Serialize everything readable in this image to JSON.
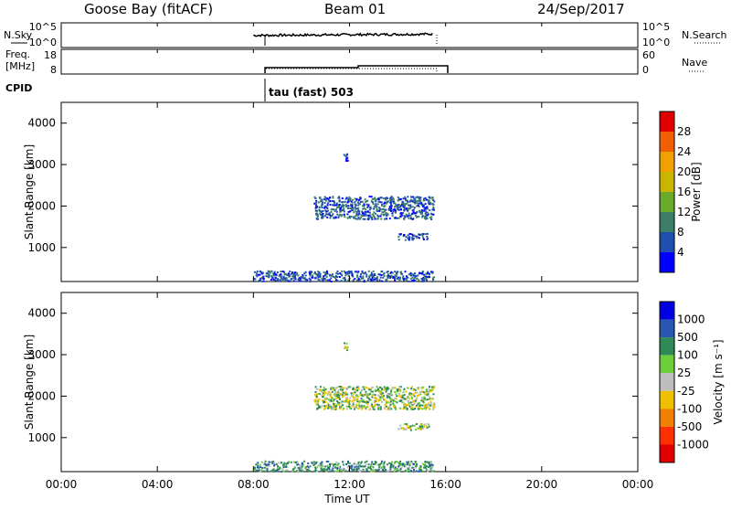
{
  "header": {
    "station": "Goose Bay (fitACF)",
    "beam": "Beam 01",
    "date": "24/Sep/2017"
  },
  "strip1": {
    "left_label": "N.Sky",
    "left_ticks": [
      "10^5",
      "10^0"
    ],
    "right_ticks": [
      "10^5",
      "10^0"
    ],
    "right_label": "N.Search"
  },
  "strip2": {
    "left_label_line1": "Freq.",
    "left_label_line2": "[MHz]",
    "left_ticks": [
      "18",
      "8"
    ],
    "right_ticks": [
      "60",
      "0"
    ],
    "right_label": "Nave",
    "cpid_label": "CPID",
    "cpid_value": "tau (fast) 503"
  },
  "colors": {
    "power_scale": [
      "#0000ff",
      "#1f4fae",
      "#3d7f66",
      "#6aaa2a",
      "#c9b400",
      "#f0a000",
      "#f06000",
      "#e00000"
    ],
    "velocity_scale": [
      "#0000e0",
      "#2a55b0",
      "#2e8b57",
      "#6ccf3a",
      "#bebebe",
      "#f0c000",
      "#f08000",
      "#ff3000",
      "#e00000"
    ]
  },
  "chart_data": [
    {
      "type": "heatmap",
      "name_axis": "Power",
      "ylabel": "Slant Range [km]",
      "xlim_hours": [
        0,
        24
      ],
      "ylim": [
        180,
        4500
      ],
      "yticks": [
        1000,
        2000,
        3000,
        4000
      ],
      "colorbar": {
        "label": "Power [dB]",
        "range": [
          0,
          32
        ],
        "ticks": [
          "4",
          "8",
          "12",
          "16",
          "20",
          "24",
          "28"
        ]
      },
      "data_extent_hours": [
        8.0,
        15.5
      ],
      "regions": [
        {
          "x": [
            8.0,
            15.5
          ],
          "y": [
            200,
            450
          ],
          "value_db": 6
        },
        {
          "x": [
            10.5,
            15.5
          ],
          "y": [
            1700,
            2250
          ],
          "value_db": 7
        },
        {
          "x": [
            14.0,
            15.3
          ],
          "y": [
            1200,
            1350
          ],
          "value_db": 6
        },
        {
          "x": [
            11.7,
            11.9
          ],
          "y": [
            3100,
            3300
          ],
          "value_db": 5
        }
      ]
    },
    {
      "type": "heatmap",
      "name_axis": "Velocity",
      "ylabel": "Slant Range [km]",
      "xlabel": "Time UT",
      "xlim_hours": [
        0,
        24
      ],
      "xticks": [
        "00:00",
        "04:00",
        "08:00",
        "12:00",
        "16:00",
        "20:00",
        "00:00"
      ],
      "ylim": [
        180,
        4500
      ],
      "yticks": [
        1000,
        2000,
        3000,
        4000
      ],
      "colorbar": {
        "label": "Velocity [m s⁻¹]",
        "ticks": [
          "1000",
          "500",
          "100",
          "25",
          "-25",
          "-100",
          "-500",
          "-1000"
        ]
      },
      "data_extent_hours": [
        8.0,
        15.5
      ],
      "regions": [
        {
          "x": [
            8.0,
            15.5
          ],
          "y": [
            200,
            450
          ],
          "value_ms": 60
        },
        {
          "x": [
            10.5,
            15.5
          ],
          "y": [
            1700,
            2250
          ],
          "value_ms": 0
        },
        {
          "x": [
            14.0,
            15.3
          ],
          "y": [
            1200,
            1350
          ],
          "value_ms": 0
        },
        {
          "x": [
            11.7,
            11.9
          ],
          "y": [
            3100,
            3300
          ],
          "value_ms": 0
        }
      ]
    }
  ]
}
